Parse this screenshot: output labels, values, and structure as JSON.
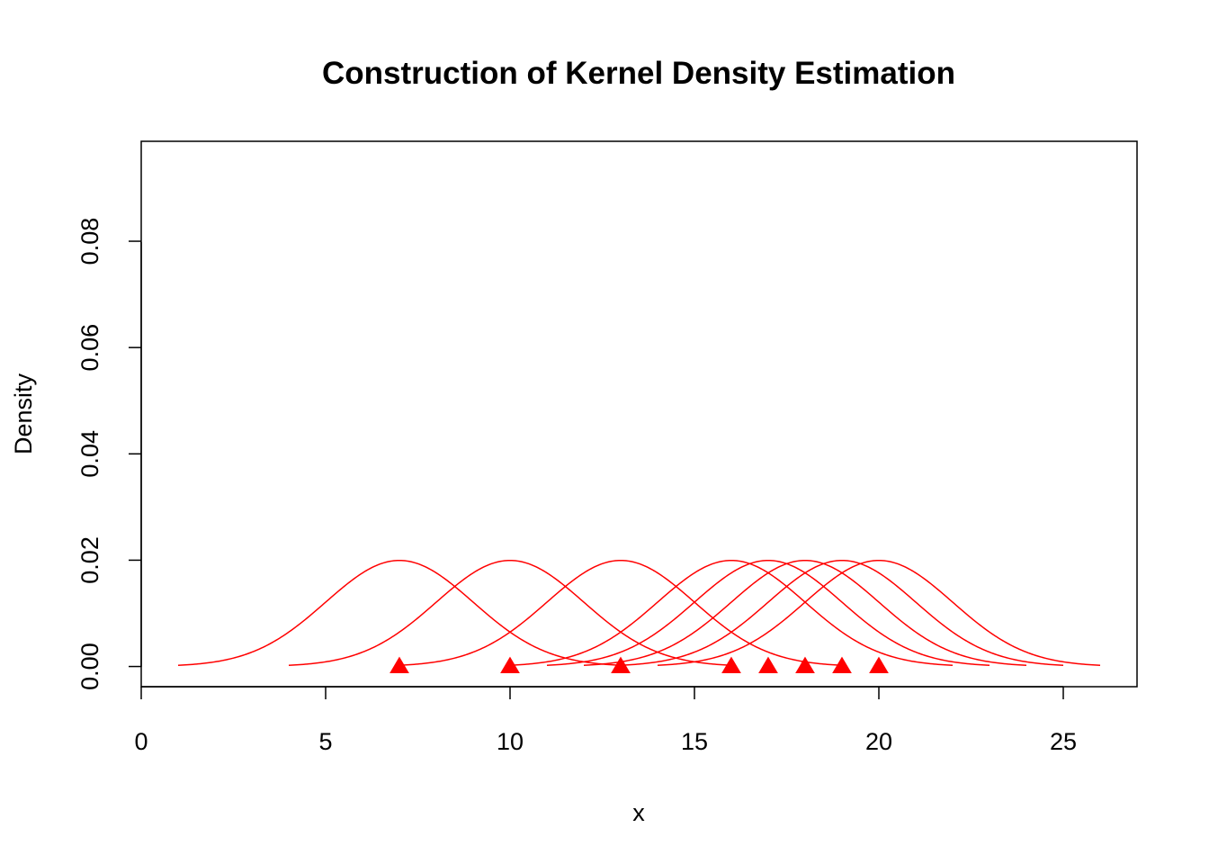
{
  "chart_data": {
    "type": "line",
    "title": "Construction of Kernel Density Estimation",
    "xlabel": "x",
    "ylabel": "Density",
    "xlim": [
      0,
      27
    ],
    "ylim": [
      -0.0038,
      0.0988
    ],
    "x_ticks": [
      0,
      5,
      10,
      15,
      20,
      25
    ],
    "y_ticks": [
      0.0,
      0.02,
      0.04,
      0.06,
      0.08
    ],
    "x_tick_labels": [
      "0",
      "5",
      "10",
      "15",
      "20",
      "25"
    ],
    "y_tick_labels": [
      "0.00",
      "0.02",
      "0.04",
      "0.06",
      "0.08"
    ],
    "grid": false,
    "color": "#ff0000",
    "kernel": "gaussian",
    "bandwidth": 2,
    "kernel_half_width": 6,
    "kernel_peak": 0.01995,
    "observations": [
      7,
      10,
      13,
      16,
      17,
      18,
      19,
      20
    ],
    "marker": "filled-triangle"
  }
}
